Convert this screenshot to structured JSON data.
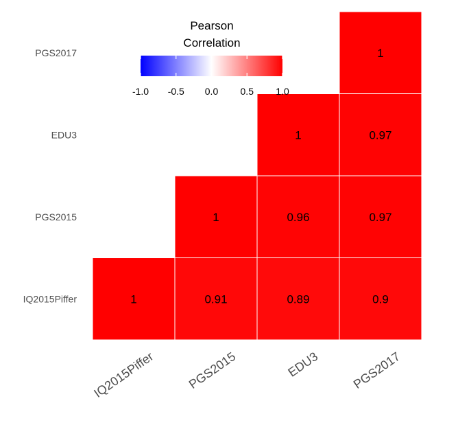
{
  "chart_data": {
    "type": "heatmap",
    "x_categories": [
      "IQ2015Piffer",
      "PGS2015",
      "EDU3",
      "PGS2017"
    ],
    "y_categories": [
      "IQ2015Piffer",
      "PGS2015",
      "EDU3",
      "PGS2017"
    ],
    "cells": [
      {
        "x": "IQ2015Piffer",
        "y": "IQ2015Piffer",
        "value": 1,
        "label": "1"
      },
      {
        "x": "PGS2015",
        "y": "IQ2015Piffer",
        "value": 0.91,
        "label": "0.91"
      },
      {
        "x": "EDU3",
        "y": "IQ2015Piffer",
        "value": 0.89,
        "label": "0.89"
      },
      {
        "x": "PGS2017",
        "y": "IQ2015Piffer",
        "value": 0.9,
        "label": "0.9"
      },
      {
        "x": "PGS2015",
        "y": "PGS2015",
        "value": 1,
        "label": "1"
      },
      {
        "x": "EDU3",
        "y": "PGS2015",
        "value": 0.96,
        "label": "0.96"
      },
      {
        "x": "PGS2017",
        "y": "PGS2015",
        "value": 0.97,
        "label": "0.97"
      },
      {
        "x": "EDU3",
        "y": "EDU3",
        "value": 1,
        "label": "1"
      },
      {
        "x": "PGS2017",
        "y": "EDU3",
        "value": 0.97,
        "label": "0.97"
      },
      {
        "x": "PGS2017",
        "y": "PGS2017",
        "value": 1,
        "label": "1"
      }
    ],
    "legend": {
      "title_line1": "Pearson",
      "title_line2": "Correlation",
      "ticks": [
        "-1.0",
        "-0.5",
        "0.0",
        "0.5",
        "1.0"
      ],
      "tick_values": [
        -1.0,
        -0.5,
        0.0,
        0.5,
        1.0
      ],
      "range": [
        -1,
        1
      ],
      "position": "top-left",
      "colors": {
        "low": "#0000ff",
        "mid": "#ffffff",
        "high": "#ff0000"
      }
    },
    "grid": false
  }
}
